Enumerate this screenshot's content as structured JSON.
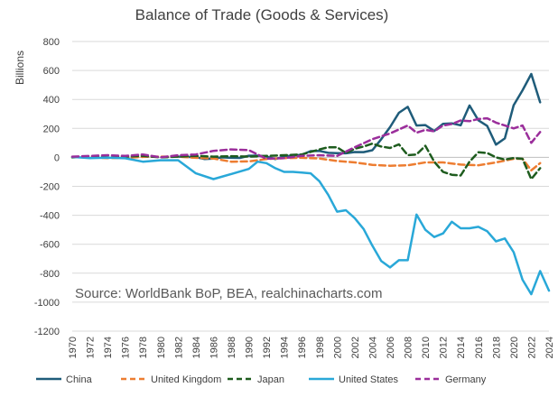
{
  "chart_data": {
    "type": "line",
    "title": "Balance of Trade (Goods & Services)",
    "ylabel": "Billions",
    "xlabel": "",
    "annotation": "Source: WorldBank BoP, BEA, realchinacharts.com",
    "ylim": [
      -1200,
      800
    ],
    "yticks": [
      800,
      600,
      400,
      200,
      0,
      -200,
      -400,
      -600,
      -800,
      -1000,
      -1200
    ],
    "xlim": [
      1970,
      2024
    ],
    "xticks": [
      1970,
      1972,
      1974,
      1976,
      1978,
      1980,
      1982,
      1984,
      1986,
      1988,
      1990,
      1992,
      1994,
      1996,
      1998,
      2000,
      2002,
      2004,
      2006,
      2008,
      2010,
      2012,
      2014,
      2016,
      2018,
      2020,
      2022,
      2024
    ],
    "grid": true,
    "legend_position": "bottom",
    "series": [
      {
        "name": "China",
        "color": "#1f5c7a",
        "dash": "solid",
        "x": [
          1982,
          1983,
          1984,
          1985,
          1986,
          1987,
          1988,
          1989,
          1990,
          1991,
          1992,
          1993,
          1994,
          1995,
          1996,
          1997,
          1998,
          1999,
          2000,
          2001,
          2002,
          2003,
          2004,
          2005,
          2006,
          2007,
          2008,
          2009,
          2010,
          2011,
          2012,
          2013,
          2014,
          2015,
          2016,
          2017,
          2018,
          2019,
          2020,
          2021,
          2022,
          2023
        ],
        "values": [
          5,
          3,
          1,
          -12,
          -8,
          0,
          -3,
          -4,
          11,
          12,
          6,
          -12,
          7,
          12,
          18,
          43,
          44,
          31,
          29,
          28,
          37,
          36,
          49,
          125,
          209,
          308,
          349,
          220,
          223,
          182,
          232,
          235,
          221,
          358,
          256,
          217,
          88,
          131,
          360,
          463,
          576,
          380
        ]
      },
      {
        "name": "United Kingdom",
        "color": "#ed7d31",
        "dash": "dash",
        "x": [
          1970,
          1972,
          1974,
          1976,
          1978,
          1980,
          1982,
          1984,
          1986,
          1988,
          1990,
          1992,
          1994,
          1996,
          1998,
          2000,
          2002,
          2004,
          2006,
          2008,
          2010,
          2012,
          2014,
          2016,
          2018,
          2020,
          2021,
          2022,
          2023
        ],
        "values": [
          1,
          0,
          -5,
          -3,
          3,
          5,
          5,
          -3,
          -8,
          -30,
          -28,
          -12,
          -5,
          -3,
          -8,
          -25,
          -35,
          -52,
          -58,
          -55,
          -35,
          -35,
          -50,
          -55,
          -35,
          -10,
          -10,
          -90,
          -40
        ]
      },
      {
        "name": "Japan",
        "color": "#1e5c1e",
        "dash": "dash",
        "x": [
          1970,
          1972,
          1974,
          1976,
          1978,
          1980,
          1982,
          1984,
          1986,
          1988,
          1990,
          1992,
          1994,
          1996,
          1998,
          1999,
          2000,
          2001,
          2002,
          2003,
          2004,
          2005,
          2006,
          2007,
          2008,
          2009,
          2010,
          2011,
          2012,
          2013,
          2014,
          2015,
          2016,
          2017,
          2018,
          2019,
          2020,
          2021,
          2022,
          2023
        ],
        "values": [
          0,
          5,
          0,
          5,
          10,
          0,
          5,
          10,
          5,
          8,
          5,
          10,
          15,
          20,
          55,
          70,
          70,
          30,
          60,
          75,
          95,
          75,
          65,
          90,
          15,
          20,
          80,
          -30,
          -100,
          -120,
          -125,
          -30,
          35,
          30,
          0,
          -15,
          -5,
          -10,
          -150,
          -75
        ]
      },
      {
        "name": "United States",
        "color": "#29a8d8",
        "dash": "solid",
        "x": [
          1970,
          1972,
          1974,
          1976,
          1978,
          1980,
          1982,
          1984,
          1986,
          1988,
          1990,
          1991,
          1992,
          1993,
          1994,
          1995,
          1996,
          1997,
          1998,
          1999,
          2000,
          2001,
          2002,
          2003,
          2004,
          2005,
          2006,
          2007,
          2008,
          2009,
          2010,
          2011,
          2012,
          2013,
          2014,
          2015,
          2016,
          2017,
          2018,
          2019,
          2020,
          2021,
          2022,
          2023,
          2024
        ],
        "values": [
          3,
          -5,
          -2,
          -6,
          -30,
          -20,
          -20,
          -110,
          -150,
          -115,
          -80,
          -30,
          -40,
          -75,
          -100,
          -100,
          -105,
          -110,
          -165,
          -260,
          -375,
          -365,
          -420,
          -495,
          -610,
          -715,
          -760,
          -710,
          -710,
          -395,
          -500,
          -550,
          -525,
          -445,
          -490,
          -490,
          -480,
          -510,
          -580,
          -560,
          -655,
          -845,
          -945,
          -785,
          -920
        ]
      },
      {
        "name": "Germany",
        "color": "#9b2e9b",
        "dash": "dash",
        "x": [
          1970,
          1972,
          1974,
          1976,
          1978,
          1980,
          1982,
          1984,
          1986,
          1988,
          1990,
          1992,
          1994,
          1996,
          1998,
          2000,
          2002,
          2004,
          2006,
          2008,
          2009,
          2010,
          2011,
          2012,
          2013,
          2014,
          2015,
          2016,
          2017,
          2018,
          2019,
          2020,
          2021,
          2022,
          2023
        ],
        "values": [
          5,
          10,
          15,
          10,
          20,
          0,
          15,
          20,
          45,
          55,
          50,
          -10,
          -5,
          10,
          15,
          10,
          70,
          125,
          165,
          220,
          170,
          190,
          180,
          220,
          230,
          255,
          250,
          265,
          270,
          240,
          220,
          200,
          220,
          100,
          175
        ]
      }
    ]
  }
}
